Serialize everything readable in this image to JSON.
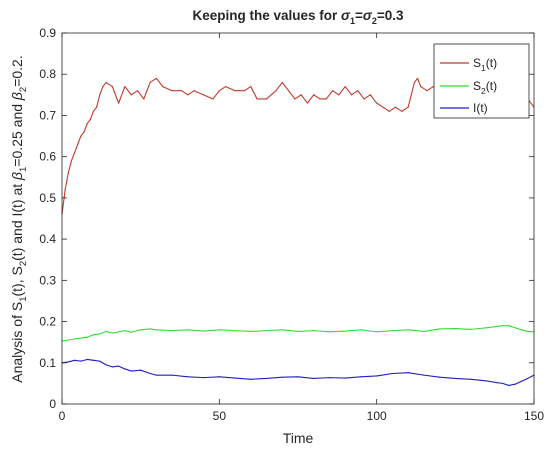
{
  "chart_data": {
    "type": "line",
    "title": {
      "prefix": "Keeping the values for ",
      "s1": "σ",
      "sub1": "1",
      "eq1": "=",
      "s2": "σ",
      "sub2": "2",
      "eq2": "=0.3"
    },
    "xlabel": "Time",
    "ylabel": {
      "p1": "Analysis of S",
      "p1sub": "1",
      "p2": "(t), S",
      "p2sub": "2",
      "p3": "(t) and I(t) at ",
      "b1": "β",
      "b1sub": "1",
      "p4": "=0.25 and ",
      "b2": "β",
      "b2sub": "2",
      "p5": "=0.2."
    },
    "xlim": [
      0,
      150
    ],
    "ylim": [
      0,
      0.9
    ],
    "xticks": [
      "0",
      "50",
      "100",
      "150"
    ],
    "yticks": [
      "0",
      "0.1",
      "0.2",
      "0.3",
      "0.4",
      "0.5",
      "0.6",
      "0.7",
      "0.8",
      "0.9"
    ],
    "grid": false,
    "legend_position": "top-right",
    "series": [
      {
        "name": "S1(t)",
        "legend_main": "S",
        "legend_sub": "1",
        "legend_tail": "(t)",
        "color": "#c0392b",
        "x": [
          0,
          1,
          2,
          3,
          4,
          5,
          6,
          7,
          8,
          9,
          10,
          11,
          12,
          13,
          14,
          16,
          18,
          20,
          22,
          24,
          26,
          28,
          30,
          32,
          35,
          38,
          40,
          42,
          45,
          48,
          50,
          52,
          55,
          58,
          60,
          62,
          65,
          68,
          70,
          72,
          74,
          76,
          78,
          80,
          82,
          84,
          86,
          88,
          90,
          92,
          94,
          96,
          98,
          100,
          102,
          104,
          106,
          108,
          110,
          111,
          112,
          113,
          114,
          116,
          118,
          120,
          122,
          124,
          126,
          128,
          130,
          132,
          134,
          136,
          138,
          140,
          142,
          144,
          146,
          148,
          150
        ],
        "y": [
          0.46,
          0.52,
          0.56,
          0.59,
          0.61,
          0.63,
          0.65,
          0.66,
          0.68,
          0.69,
          0.71,
          0.72,
          0.75,
          0.77,
          0.78,
          0.77,
          0.73,
          0.77,
          0.75,
          0.76,
          0.74,
          0.78,
          0.79,
          0.77,
          0.76,
          0.76,
          0.75,
          0.76,
          0.75,
          0.74,
          0.76,
          0.77,
          0.76,
          0.76,
          0.77,
          0.74,
          0.74,
          0.76,
          0.78,
          0.76,
          0.74,
          0.75,
          0.73,
          0.75,
          0.74,
          0.74,
          0.76,
          0.75,
          0.77,
          0.75,
          0.76,
          0.74,
          0.75,
          0.73,
          0.72,
          0.71,
          0.72,
          0.71,
          0.72,
          0.75,
          0.78,
          0.79,
          0.77,
          0.76,
          0.77,
          0.78,
          0.77,
          0.76,
          0.77,
          0.75,
          0.76,
          0.78,
          0.76,
          0.75,
          0.74,
          0.76,
          0.75,
          0.73,
          0.72,
          0.74,
          0.72
        ]
      },
      {
        "name": "S2(t)",
        "legend_main": "S",
        "legend_sub": "2",
        "legend_tail": "(t)",
        "color": "#33dd33",
        "x": [
          0,
          2,
          4,
          6,
          8,
          10,
          12,
          14,
          16,
          18,
          20,
          22,
          25,
          28,
          30,
          35,
          40,
          45,
          50,
          55,
          60,
          65,
          70,
          75,
          80,
          85,
          90,
          95,
          100,
          105,
          110,
          115,
          120,
          125,
          130,
          135,
          140,
          142,
          144,
          146,
          148,
          150
        ],
        "y": [
          0.153,
          0.155,
          0.158,
          0.16,
          0.162,
          0.168,
          0.17,
          0.176,
          0.172,
          0.175,
          0.178,
          0.174,
          0.18,
          0.182,
          0.18,
          0.178,
          0.18,
          0.177,
          0.18,
          0.178,
          0.176,
          0.178,
          0.18,
          0.176,
          0.178,
          0.175,
          0.177,
          0.18,
          0.175,
          0.178,
          0.18,
          0.176,
          0.182,
          0.183,
          0.181,
          0.185,
          0.19,
          0.19,
          0.185,
          0.18,
          0.176,
          0.175
        ]
      },
      {
        "name": "I(t)",
        "legend_main": "I(t)",
        "legend_sub": "",
        "legend_tail": "",
        "color": "#1f1fbf",
        "x": [
          0,
          2,
          4,
          6,
          8,
          10,
          12,
          14,
          16,
          18,
          20,
          22,
          25,
          28,
          30,
          35,
          40,
          45,
          50,
          55,
          60,
          65,
          70,
          75,
          80,
          85,
          90,
          95,
          100,
          105,
          110,
          115,
          120,
          125,
          130,
          135,
          138,
          140,
          142,
          144,
          146,
          148,
          150
        ],
        "y": [
          0.1,
          0.102,
          0.106,
          0.104,
          0.108,
          0.106,
          0.104,
          0.095,
          0.09,
          0.092,
          0.085,
          0.08,
          0.082,
          0.074,
          0.07,
          0.07,
          0.066,
          0.064,
          0.066,
          0.063,
          0.06,
          0.062,
          0.065,
          0.066,
          0.062,
          0.064,
          0.063,
          0.066,
          0.068,
          0.074,
          0.076,
          0.07,
          0.065,
          0.062,
          0.06,
          0.056,
          0.052,
          0.05,
          0.045,
          0.048,
          0.055,
          0.062,
          0.07
        ]
      }
    ]
  }
}
